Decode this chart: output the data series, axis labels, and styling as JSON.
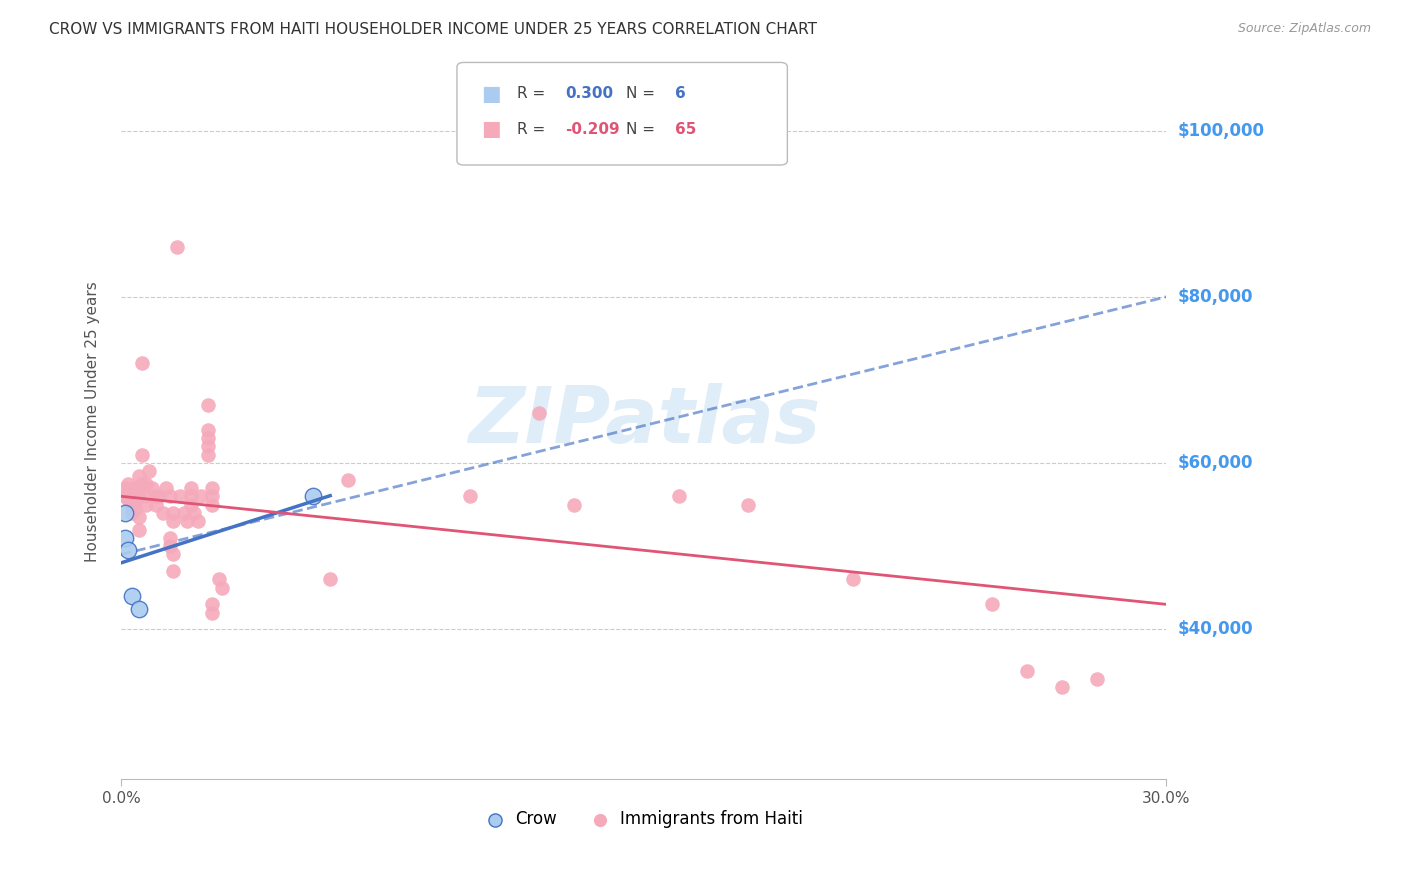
{
  "title": "CROW VS IMMIGRANTS FROM HAITI HOUSEHOLDER INCOME UNDER 25 YEARS CORRELATION CHART",
  "source": "Source: ZipAtlas.com",
  "ylabel": "Householder Income Under 25 years",
  "xlim": [
    0.0,
    0.3
  ],
  "ylim": [
    22000,
    108000
  ],
  "ytick_values": [
    40000,
    60000,
    80000,
    100000
  ],
  "ytick_labels": [
    "$40,000",
    "$60,000",
    "$80,000",
    "$100,000"
  ],
  "watermark": "ZIPatlas",
  "crow_color": "#aaccf0",
  "haiti_color": "#f5aabb",
  "crow_line_color": "#4472c4",
  "haiti_line_color": "#e05575",
  "right_label_color": "#4499ee",
  "grid_color": "#cccccc",
  "background_color": "#ffffff",
  "crow_scatter": [
    [
      0.001,
      54000
    ],
    [
      0.001,
      51000
    ],
    [
      0.002,
      49500
    ],
    [
      0.003,
      44000
    ],
    [
      0.005,
      42500
    ],
    [
      0.055,
      56000
    ]
  ],
  "haiti_scatter": [
    [
      0.001,
      57000
    ],
    [
      0.001,
      56000
    ],
    [
      0.002,
      57500
    ],
    [
      0.002,
      55500
    ],
    [
      0.003,
      56000
    ],
    [
      0.003,
      55000
    ],
    [
      0.003,
      54000
    ],
    [
      0.004,
      57000
    ],
    [
      0.004,
      55500
    ],
    [
      0.004,
      54500
    ],
    [
      0.005,
      58500
    ],
    [
      0.005,
      57000
    ],
    [
      0.005,
      56000
    ],
    [
      0.005,
      53500
    ],
    [
      0.005,
      52000
    ],
    [
      0.006,
      72000
    ],
    [
      0.006,
      61000
    ],
    [
      0.006,
      57500
    ],
    [
      0.007,
      57500
    ],
    [
      0.007,
      56000
    ],
    [
      0.007,
      55000
    ],
    [
      0.008,
      59000
    ],
    [
      0.009,
      57000
    ],
    [
      0.01,
      56000
    ],
    [
      0.01,
      55000
    ],
    [
      0.011,
      56000
    ],
    [
      0.012,
      54000
    ],
    [
      0.013,
      57000
    ],
    [
      0.014,
      56000
    ],
    [
      0.014,
      51000
    ],
    [
      0.014,
      50000
    ],
    [
      0.015,
      54000
    ],
    [
      0.015,
      53000
    ],
    [
      0.015,
      49000
    ],
    [
      0.015,
      47000
    ],
    [
      0.016,
      86000
    ],
    [
      0.017,
      56000
    ],
    [
      0.018,
      54000
    ],
    [
      0.019,
      53000
    ],
    [
      0.02,
      57000
    ],
    [
      0.02,
      56000
    ],
    [
      0.02,
      55000
    ],
    [
      0.021,
      54000
    ],
    [
      0.022,
      53000
    ],
    [
      0.023,
      56000
    ],
    [
      0.025,
      67000
    ],
    [
      0.025,
      64000
    ],
    [
      0.025,
      63000
    ],
    [
      0.025,
      62000
    ],
    [
      0.025,
      61000
    ],
    [
      0.026,
      57000
    ],
    [
      0.026,
      56000
    ],
    [
      0.026,
      55000
    ],
    [
      0.026,
      43000
    ],
    [
      0.026,
      42000
    ],
    [
      0.028,
      46000
    ],
    [
      0.029,
      45000
    ],
    [
      0.06,
      46000
    ],
    [
      0.065,
      58000
    ],
    [
      0.1,
      56000
    ],
    [
      0.12,
      66000
    ],
    [
      0.13,
      55000
    ],
    [
      0.16,
      56000
    ],
    [
      0.18,
      55000
    ],
    [
      0.21,
      46000
    ],
    [
      0.25,
      43000
    ],
    [
      0.26,
      35000
    ],
    [
      0.27,
      33000
    ],
    [
      0.28,
      34000
    ]
  ],
  "crow_line_x": [
    0.0,
    0.3
  ],
  "crow_line_y": [
    49000,
    80000
  ],
  "haiti_line_x": [
    0.0,
    0.3
  ],
  "haiti_line_y": [
    56000,
    43000
  ]
}
